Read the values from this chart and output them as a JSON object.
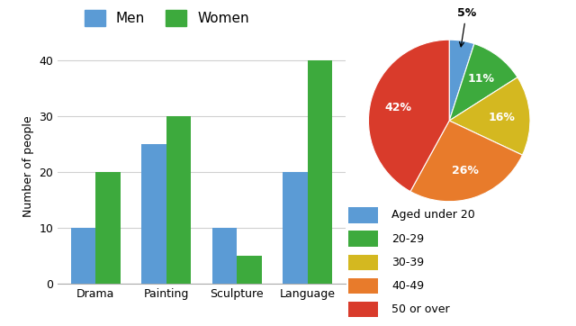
{
  "bar_categories": [
    "Drama",
    "Painting",
    "Sculpture",
    "Language"
  ],
  "men_values": [
    10,
    25,
    10,
    20
  ],
  "women_values": [
    20,
    30,
    5,
    40
  ],
  "bar_ylim": [
    0,
    42
  ],
  "bar_yticks": [
    0,
    10,
    20,
    30,
    40
  ],
  "ylabel": "Number of people",
  "men_color": "#5B9BD5",
  "women_color": "#3DAA3D",
  "pie_values": [
    5,
    11,
    16,
    26,
    42
  ],
  "pie_labels": [
    "5%",
    "11%",
    "16%",
    "26%",
    "42%"
  ],
  "pie_colors": [
    "#5B9BD5",
    "#3DAA3D",
    "#D4B820",
    "#E87B2B",
    "#D93B2B"
  ],
  "pie_legend_labels": [
    "Aged under 20",
    "20-29",
    "30-39",
    "40-49",
    "50 or over"
  ],
  "background_color": "#ffffff",
  "bar_width": 0.35,
  "legend_men": "Men",
  "legend_women": "Women",
  "grid_color": "#d0d0d0"
}
